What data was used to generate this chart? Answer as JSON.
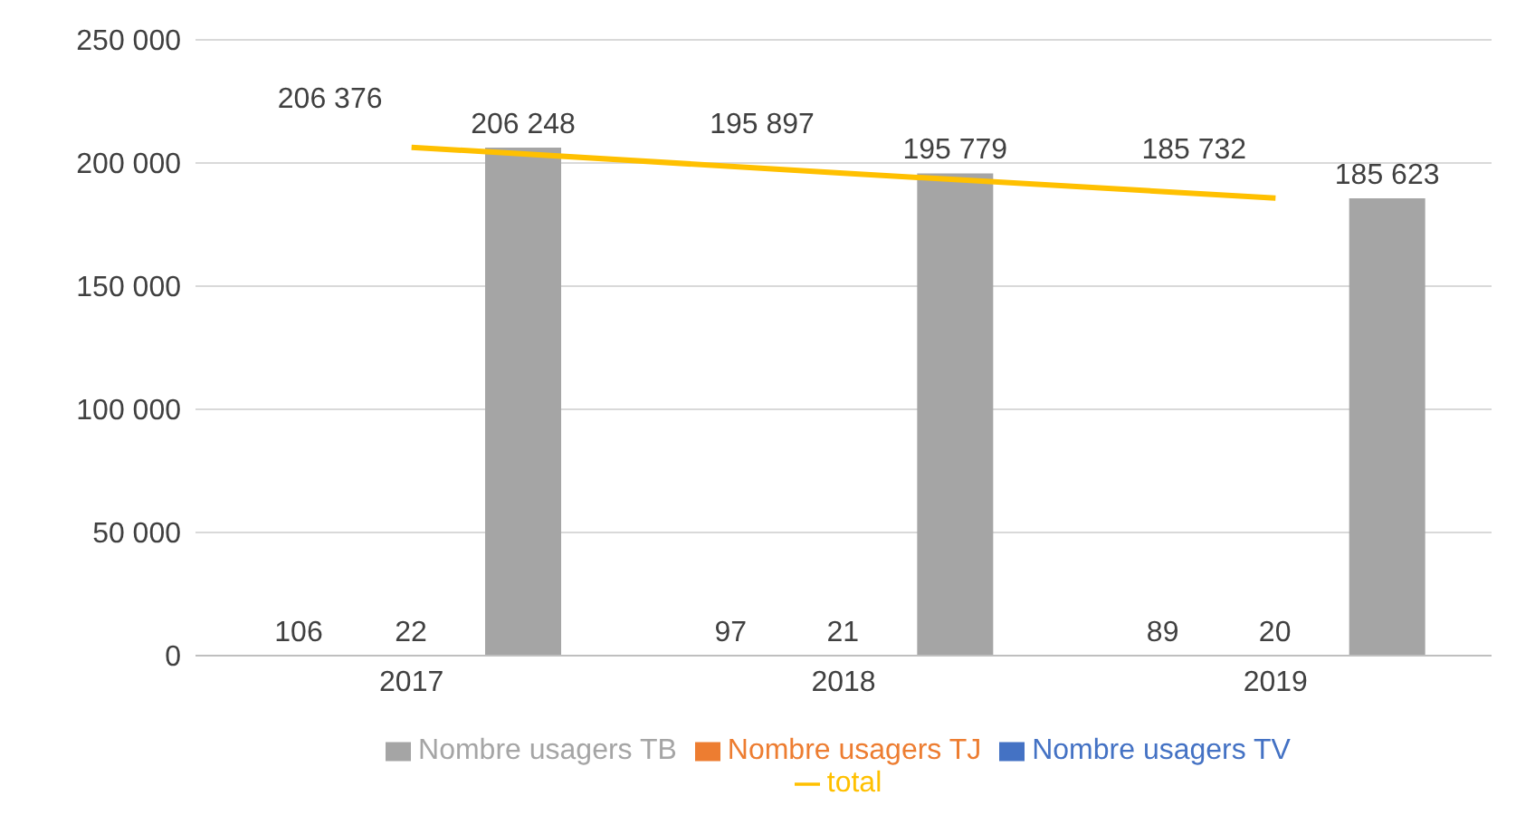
{
  "chart_data": {
    "type": "bar",
    "categories": [
      "2017",
      "2018",
      "2019"
    ],
    "series": [
      {
        "name": "Nombre usagers TV",
        "color": "#4472c4",
        "values": [
          106,
          97,
          89
        ],
        "value_labels": [
          "106",
          "97",
          "89"
        ]
      },
      {
        "name": "Nombre usagers TJ",
        "color": "#ed7d31",
        "values": [
          22,
          21,
          20
        ],
        "value_labels": [
          "22",
          "21",
          "20"
        ]
      },
      {
        "name": "Nombre usagers TB",
        "color": "#a5a5a5",
        "values": [
          206248,
          195779,
          185623
        ],
        "value_labels": [
          "206 248",
          "195 779",
          "185 623"
        ]
      },
      {
        "name": "total",
        "type": "line",
        "color": "#ffc000",
        "values": [
          206376,
          195897,
          185732
        ],
        "value_labels": [
          "206 376",
          "195 897",
          "185 732"
        ]
      }
    ],
    "ylim": [
      0,
      250000
    ],
    "yticks": [
      {
        "value": 0,
        "label": "0"
      },
      {
        "value": 50000,
        "label": "50 000"
      },
      {
        "value": 100000,
        "label": "100 000"
      },
      {
        "value": 150000,
        "label": "150 000"
      },
      {
        "value": 200000,
        "label": "200 000"
      },
      {
        "value": 250000,
        "label": "250 000"
      }
    ],
    "grid": "y",
    "legend": "bottom",
    "marker": "none"
  }
}
